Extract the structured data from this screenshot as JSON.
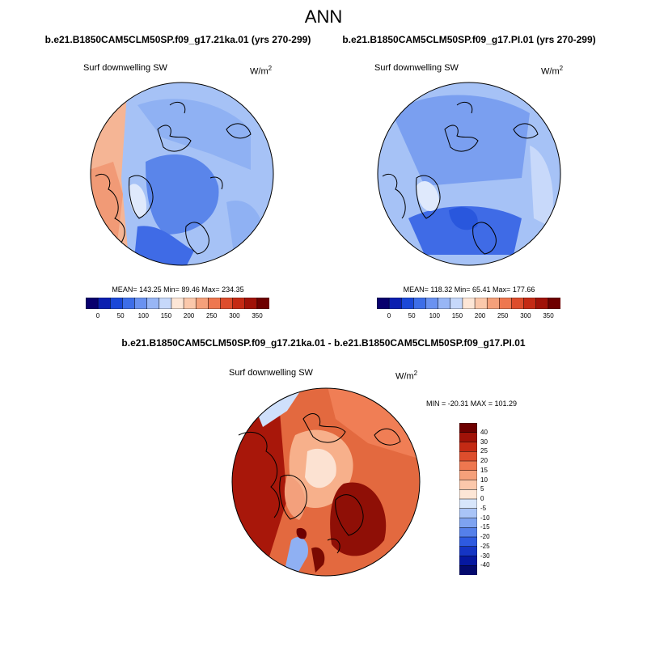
{
  "title": "ANN",
  "panels": [
    {
      "case_title": "b.e21.B1850CAM5CLM50SP.f09_g17.21ka.01 (yrs 270-299)",
      "variable": "Surf downwelling SW",
      "units": "W/m",
      "units_sup": "2",
      "stats": "MEAN= 143.25  Min=  89.46  Max= 234.35"
    },
    {
      "case_title": "b.e21.B1850CAM5CLM50SP.f09_g17.PI.01 (yrs 270-299)",
      "variable": "Surf downwelling SW",
      "units": "W/m",
      "units_sup": "2",
      "stats": "MEAN= 118.32  Min=  65.41  Max= 177.66"
    }
  ],
  "diff_panel": {
    "case_title": "b.e21.B1850CAM5CLM50SP.f09_g17.21ka.01 - b.e21.B1850CAM5CLM50SP.f09_g17.PI.01",
    "variable": "Surf downwelling SW",
    "units": "W/m",
    "units_sup": "2",
    "stats": "MIN = -20.31 MAX = 101.29"
  },
  "chart_data": [
    {
      "type": "heatmap",
      "projection": "north-polar-stereographic",
      "title": "b.e21.B1850CAM5CLM50SP.f09_g17.21ka.01 (yrs 270-299)",
      "variable": "Surf downwelling SW",
      "units": "W/m2",
      "mean": 143.25,
      "min": 89.46,
      "max": 234.35,
      "colorbar": {
        "ticks": [
          "0",
          "50",
          "100",
          "150",
          "200",
          "250",
          "300",
          "350"
        ],
        "levels": [
          0,
          25,
          50,
          75,
          100,
          125,
          150,
          175,
          200,
          225,
          250,
          275,
          300,
          325,
          350
        ],
        "colors": [
          "#08006e",
          "#0b1fb0",
          "#1a48d8",
          "#3d6ee8",
          "#6a92f0",
          "#98b6f5",
          "#c6d8fa",
          "#fde6d6",
          "#fbc8ab",
          "#f5a07a",
          "#ee774f",
          "#dd4d2c",
          "#c42a14",
          "#a01208",
          "#6e0000"
        ]
      }
    },
    {
      "type": "heatmap",
      "projection": "north-polar-stereographic",
      "title": "b.e21.B1850CAM5CLM50SP.f09_g17.PI.01 (yrs 270-299)",
      "variable": "Surf downwelling SW",
      "units": "W/m2",
      "mean": 118.32,
      "min": 65.41,
      "max": 177.66,
      "colorbar": {
        "ticks": [
          "0",
          "50",
          "100",
          "150",
          "200",
          "250",
          "300",
          "350"
        ],
        "levels": [
          0,
          25,
          50,
          75,
          100,
          125,
          150,
          175,
          200,
          225,
          250,
          275,
          300,
          325,
          350
        ],
        "colors": [
          "#08006e",
          "#0b1fb0",
          "#1a48d8",
          "#3d6ee8",
          "#6a92f0",
          "#98b6f5",
          "#c6d8fa",
          "#fde6d6",
          "#fbc8ab",
          "#f5a07a",
          "#ee774f",
          "#dd4d2c",
          "#c42a14",
          "#a01208",
          "#6e0000"
        ]
      }
    },
    {
      "type": "heatmap",
      "projection": "north-polar-stereographic",
      "title": "b.e21.B1850CAM5CLM50SP.f09_g17.21ka.01 - b.e21.B1850CAM5CLM50SP.f09_g17.PI.01",
      "variable": "Surf downwelling SW",
      "units": "W/m2",
      "min": -20.31,
      "max": 101.29,
      "colorbar": {
        "ticks": [
          "40",
          "30",
          "25",
          "20",
          "15",
          "10",
          "5",
          "0",
          "-5",
          "-10",
          "-15",
          "-20",
          "-25",
          "-30",
          "-40"
        ],
        "colors": [
          "#6e0000",
          "#a01208",
          "#c42a14",
          "#dd4d2c",
          "#ee774f",
          "#f5a07a",
          "#fbc8ab",
          "#fde6d6",
          "#d8e6fb",
          "#a9c4f7",
          "#7ea3f1",
          "#5580ea",
          "#2e5ae0",
          "#1535c4",
          "#0618a0",
          "#040a6e"
        ]
      }
    }
  ]
}
